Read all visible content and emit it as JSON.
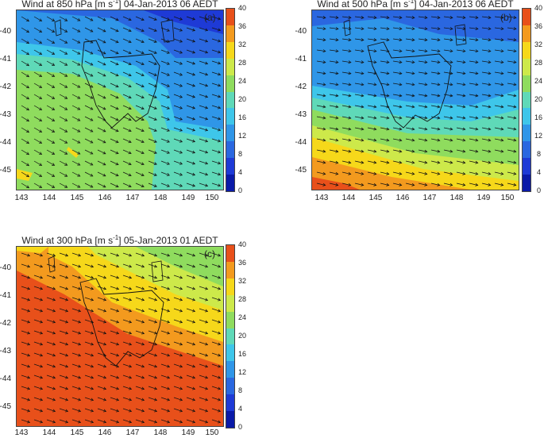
{
  "colorbar": {
    "ticks": [
      "40",
      "36",
      "32",
      "28",
      "24",
      "20",
      "16",
      "12",
      "8",
      "4",
      "0"
    ],
    "colors": [
      "#e8501a",
      "#f39a1e",
      "#f6d81a",
      "#cde94a",
      "#8fdc5e",
      "#5fd9b8",
      "#3ec6ea",
      "#2f96e8",
      "#2a67e0",
      "#1e3ad6",
      "#0a1aa8"
    ]
  },
  "axes": {
    "y_labels": [
      "-40",
      "-41",
      "-42",
      "-43",
      "-44",
      "-45"
    ],
    "x_labels": [
      "143",
      "144",
      "145",
      "146",
      "147",
      "148",
      "149",
      "150"
    ]
  },
  "panels": [
    {
      "title_pre": "Wind at 850 hPa [m s",
      "title_sup": "-1",
      "title_post": "] 04-Jan-2013 06 AEDT",
      "label": "(a)"
    },
    {
      "title_pre": "Wind at 500 hPa [m s",
      "title_sup": "-1",
      "title_post": "] 04-Jan-2013 06 AEDT",
      "label": "(b)"
    },
    {
      "title_pre": "Wind at 300 hPa [m s",
      "title_sup": "-1",
      "title_post": "] 05-Jan-2013 01 AEDT",
      "label": "(c)"
    }
  ]
}
